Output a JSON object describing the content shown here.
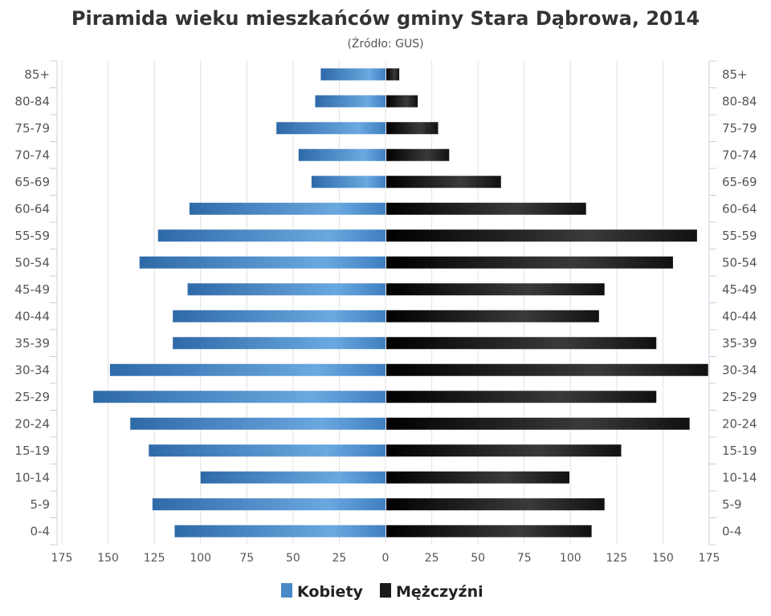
{
  "chart_data": {
    "type": "bar",
    "orientation": "horizontal",
    "title": "Piramida wieku mieszkańców gminy Stara Dąbrowa, 2014",
    "subtitle": "(Źródło: GUS)",
    "categories": [
      "85+",
      "80-84",
      "75-79",
      "70-74",
      "65-69",
      "60-64",
      "55-59",
      "50-54",
      "45-49",
      "40-44",
      "35-39",
      "30-34",
      "25-29",
      "20-24",
      "15-19",
      "10-14",
      "5-9",
      "0-4"
    ],
    "series": [
      {
        "name": "Kobiety",
        "side": "left",
        "color": "#4a89c8",
        "values": [
          35,
          38,
          59,
          47,
          40,
          106,
          123,
          133,
          107,
          115,
          115,
          149,
          158,
          138,
          128,
          100,
          126,
          114
        ]
      },
      {
        "name": "Mężczyźni",
        "side": "right",
        "color": "#1a1a1a",
        "values": [
          7,
          17,
          28,
          34,
          62,
          108,
          168,
          155,
          118,
          115,
          146,
          174,
          146,
          164,
          127,
          99,
          118,
          111
        ]
      }
    ],
    "xlim": [
      -175,
      175
    ],
    "xticks": [
      "175",
      "150",
      "125",
      "100",
      "75",
      "50",
      "25",
      "0",
      "25",
      "50",
      "75",
      "100",
      "125",
      "150",
      "175"
    ],
    "grid": true,
    "legend": "bottom-center"
  }
}
